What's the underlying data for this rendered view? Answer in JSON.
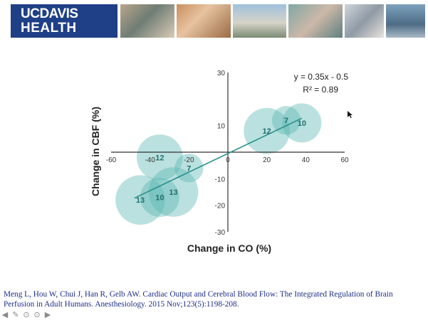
{
  "header": {
    "logo_line1": "UCDAVIS",
    "logo_line2": "HEALTH"
  },
  "chart_data": {
    "type": "scatter",
    "xlabel": "Change in CO (%)",
    "ylabel": "Change in CBF (%)",
    "xlim": [
      -60,
      60
    ],
    "ylim": [
      -30,
      30
    ],
    "x_ticks": [
      "-60",
      "-40",
      "-20",
      "0",
      "20",
      "40",
      "60"
    ],
    "y_ticks": [
      "30",
      "10",
      "-10",
      "-20",
      "-30"
    ],
    "equation": "y = 0.35x - 0.5",
    "r_squared": "R² = 0.89",
    "bubble_color": "#5ab8b2",
    "trend_color": "#2a8f8a",
    "points": [
      {
        "x": -35,
        "y": -2,
        "label": "12",
        "n": 12
      },
      {
        "x": -20,
        "y": -6,
        "label": "7",
        "n": 7
      },
      {
        "x": -45,
        "y": -18,
        "label": "13",
        "n": 13
      },
      {
        "x": -35,
        "y": -17,
        "label": "10",
        "n": 10
      },
      {
        "x": -28,
        "y": -15,
        "label": "13",
        "n": 13
      },
      {
        "x": 20,
        "y": 8,
        "label": "12",
        "n": 12
      },
      {
        "x": 30,
        "y": 12,
        "label": "7",
        "n": 7
      },
      {
        "x": 38,
        "y": 11,
        "label": "10",
        "n": 10
      }
    ],
    "trendline": {
      "slope": 0.35,
      "intercept": -0.5,
      "x_from": -48,
      "x_to": 38
    },
    "grid": false
  },
  "citation": "Meng L, Hou W, Chui J, Han R, Gelb AW. Cardiac Output and Cerebral Blood Flow: The Integrated Regulation of Brain Perfusion in Adult Humans. Anesthesiology. 2015 Nov;123(5):1198-208."
}
